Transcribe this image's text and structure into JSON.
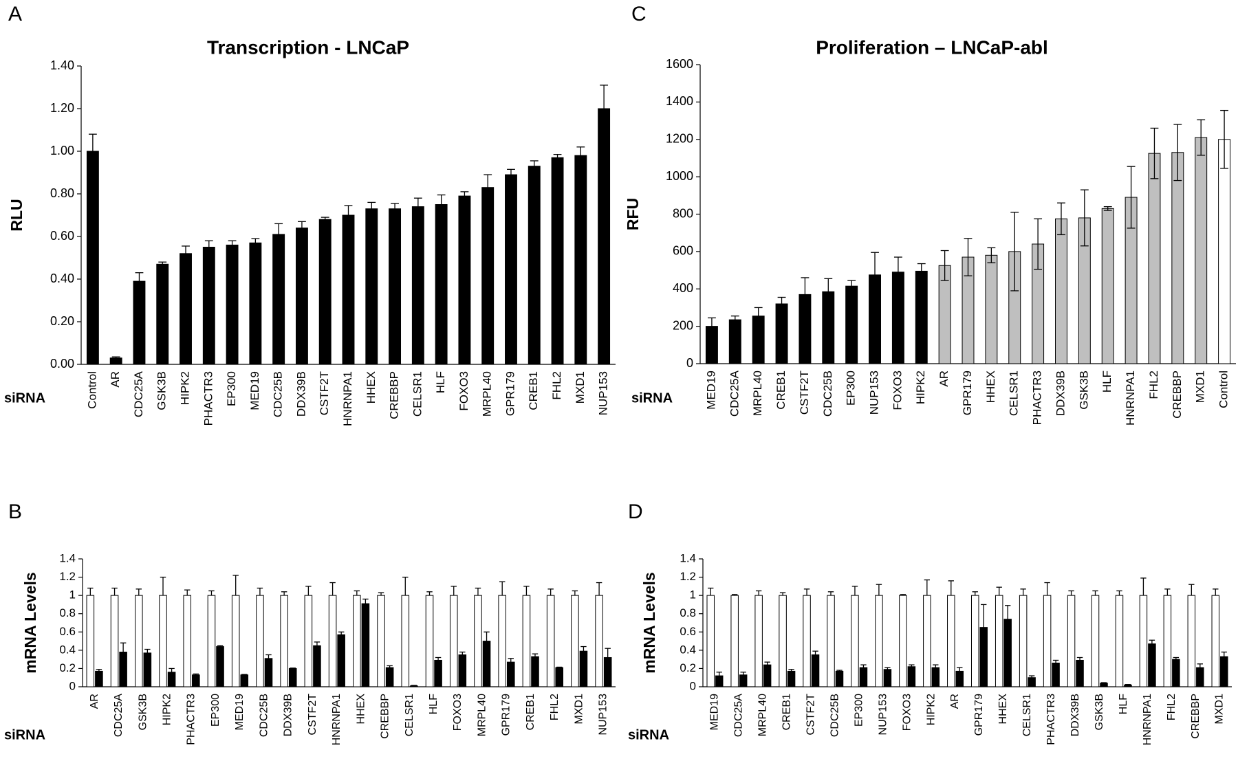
{
  "chart_data": [
    {
      "type": "bar",
      "panel_label": "A",
      "title": "Transcription - LNCaP",
      "y_label": "RLU",
      "x_label": "siRNA",
      "categories": [
        "Control",
        "AR",
        "CDC25A",
        "GSK3B",
        "HIPK2",
        "PHACTR3",
        "EP300",
        "MED19",
        "CDC25B",
        "DDX39B",
        "CSTF2T",
        "HNRNPA1",
        "HHEX",
        "CREBBP",
        "CELSR1",
        "HLF",
        "FOXO3",
        "MRPL40",
        "GPR179",
        "CREB1",
        "FHL2",
        "MXD1",
        "NUP153"
      ],
      "values": [
        1.0,
        0.03,
        0.39,
        0.47,
        0.52,
        0.55,
        0.56,
        0.57,
        0.61,
        0.64,
        0.68,
        0.7,
        0.73,
        0.73,
        0.74,
        0.75,
        0.79,
        0.83,
        0.89,
        0.93,
        0.97,
        0.98,
        1.2
      ],
      "errors": [
        0.08,
        0.005,
        0.04,
        0.01,
        0.035,
        0.03,
        0.02,
        0.02,
        0.05,
        0.03,
        0.01,
        0.045,
        0.03,
        0.025,
        0.04,
        0.045,
        0.02,
        0.06,
        0.025,
        0.025,
        0.015,
        0.04,
        0.11
      ],
      "error_direction": "up",
      "color": "#000000",
      "ylim": [
        0,
        1.4
      ],
      "yticks": [
        {
          "value": 0,
          "label": "0.00"
        },
        {
          "value": 0.2,
          "label": "0.20"
        },
        {
          "value": 0.4,
          "label": "0.40"
        },
        {
          "value": 0.6,
          "label": "0.60"
        },
        {
          "value": 0.8,
          "label": "0.80"
        },
        {
          "value": 1.0,
          "label": "1.00"
        },
        {
          "value": 1.2,
          "label": "1.20"
        },
        {
          "value": 1.4,
          "label": "1.40"
        }
      ]
    },
    {
      "type": "grouped_bar",
      "panel_label": "B",
      "y_label": "mRNA Levels",
      "x_label": "siRNA",
      "categories": [
        "AR",
        "CDC25A",
        "GSK3B",
        "HIPK2",
        "PHACTR3",
        "EP300",
        "MED19",
        "CDC25B",
        "DDX39B",
        "CSTF2T",
        "HNRNPA1",
        "HHEX",
        "CREBBP",
        "CELSR1",
        "HLF",
        "FOXO3",
        "MRPL40",
        "GPR179",
        "CREB1",
        "FHL2",
        "MXD1",
        "NUP153"
      ],
      "series": [
        {
          "color": "#ffffff",
          "values": [
            1,
            1,
            1,
            1,
            1,
            1,
            1,
            1,
            1,
            1,
            1,
            1,
            1,
            1,
            1,
            1,
            1,
            1,
            1,
            1,
            1,
            1
          ],
          "errors": [
            0.08,
            0.08,
            0.07,
            0.2,
            0.06,
            0.05,
            0.22,
            0.08,
            0.04,
            0.1,
            0.14,
            0.05,
            0.03,
            0.2,
            0.04,
            0.1,
            0.08,
            0.15,
            0.1,
            0.07,
            0.05,
            0.14
          ]
        },
        {
          "color": "#000000",
          "values": [
            0.17,
            0.38,
            0.37,
            0.16,
            0.13,
            0.44,
            0.13,
            0.31,
            0.2,
            0.45,
            0.57,
            0.91,
            0.21,
            0.01,
            0.29,
            0.35,
            0.5,
            0.27,
            0.33,
            0.21,
            0.39,
            0.32
          ],
          "errors": [
            0.02,
            0.1,
            0.04,
            0.04,
            0.01,
            0.01,
            0.005,
            0.04,
            0.005,
            0.04,
            0.03,
            0.05,
            0.02,
            0.005,
            0.03,
            0.03,
            0.1,
            0.04,
            0.03,
            0.005,
            0.05,
            0.1
          ]
        }
      ],
      "error_direction": "up",
      "edge_color": "#000000",
      "ylim": [
        0,
        1.4
      ],
      "yticks": [
        0,
        0.2,
        0.4,
        0.6,
        0.8,
        1,
        1.2,
        1.4
      ]
    },
    {
      "type": "bar",
      "panel_label": "C",
      "title": "Proliferation – LNCaP-abl",
      "y_label": "RFU",
      "x_label": "siRNA",
      "categories": [
        "MED19",
        "CDC25A",
        "MRPL40",
        "CREB1",
        "CSTF2T",
        "CDC25B",
        "EP300",
        "NUP153",
        "FOXO3",
        "HIPK2",
        "AR",
        "GPR179",
        "HHEX",
        "CELSR1",
        "PHACTR3",
        "DDX39B",
        "GSK3B",
        "HLF",
        "HNRNPA1",
        "FHL2",
        "CREBBP",
        "MXD1",
        "Control"
      ],
      "values": [
        200,
        235,
        255,
        320,
        370,
        385,
        415,
        475,
        490,
        495,
        525,
        570,
        580,
        600,
        640,
        775,
        780,
        830,
        890,
        1125,
        1130,
        1210,
        1200
      ],
      "errors": [
        45,
        20,
        45,
        35,
        90,
        70,
        30,
        120,
        80,
        40,
        80,
        100,
        40,
        210,
        135,
        85,
        150,
        10,
        165,
        135,
        150,
        95,
        155
      ],
      "error_direction": "both",
      "colors": [
        "#000000",
        "#000000",
        "#000000",
        "#000000",
        "#000000",
        "#000000",
        "#000000",
        "#000000",
        "#000000",
        "#000000",
        "#bfbfbf",
        "#bfbfbf",
        "#bfbfbf",
        "#bfbfbf",
        "#bfbfbf",
        "#bfbfbf",
        "#bfbfbf",
        "#bfbfbf",
        "#bfbfbf",
        "#bfbfbf",
        "#bfbfbf",
        "#bfbfbf",
        "#ffffff"
      ],
      "edge_color": "#000000",
      "ylim": [
        0,
        1600
      ],
      "yticks": [
        0,
        200,
        400,
        600,
        800,
        1000,
        1200,
        1400,
        1600
      ]
    },
    {
      "type": "grouped_bar",
      "panel_label": "D",
      "y_label": "mRNA Levels",
      "x_label": "siRNA",
      "categories": [
        "MED19",
        "CDC25A",
        "MRPL40",
        "CREB1",
        "CSTF2T",
        "CDC25B",
        "EP300",
        "NUP153",
        "FOXO3",
        "HIPK2",
        "AR",
        "GPR179",
        "HHEX",
        "CELSR1",
        "PHACTR3",
        "DDX39B",
        "GSK3B",
        "HLF",
        "HNRNPA1",
        "FHL2",
        "CREBBP",
        "MXD1"
      ],
      "series": [
        {
          "color": "#ffffff",
          "values": [
            1,
            1,
            1,
            1,
            1,
            1,
            1,
            1,
            1,
            1,
            1,
            1,
            1,
            1,
            1,
            1,
            1,
            1,
            1,
            1,
            1,
            1
          ],
          "errors": [
            0.08,
            0.01,
            0.05,
            0.03,
            0.07,
            0.04,
            0.1,
            0.12,
            0.01,
            0.17,
            0.16,
            0.04,
            0.09,
            0.07,
            0.14,
            0.05,
            0.05,
            0.05,
            0.19,
            0.07,
            0.12,
            0.07
          ]
        },
        {
          "color": "#000000",
          "values": [
            0.12,
            0.13,
            0.24,
            0.17,
            0.35,
            0.17,
            0.21,
            0.19,
            0.22,
            0.21,
            0.17,
            0.65,
            0.74,
            0.1,
            0.26,
            0.29,
            0.04,
            0.02,
            0.47,
            0.3,
            0.21,
            0.33
          ],
          "errors": [
            0.04,
            0.03,
            0.03,
            0.02,
            0.04,
            0.01,
            0.03,
            0.02,
            0.02,
            0.03,
            0.04,
            0.25,
            0.15,
            0.02,
            0.03,
            0.03,
            0.005,
            0.005,
            0.04,
            0.02,
            0.04,
            0.05
          ]
        }
      ],
      "error_direction": "up",
      "edge_color": "#000000",
      "ylim": [
        0,
        1.4
      ],
      "yticks": [
        0,
        0.2,
        0.4,
        0.6,
        0.8,
        1,
        1.2,
        1.4
      ]
    }
  ]
}
